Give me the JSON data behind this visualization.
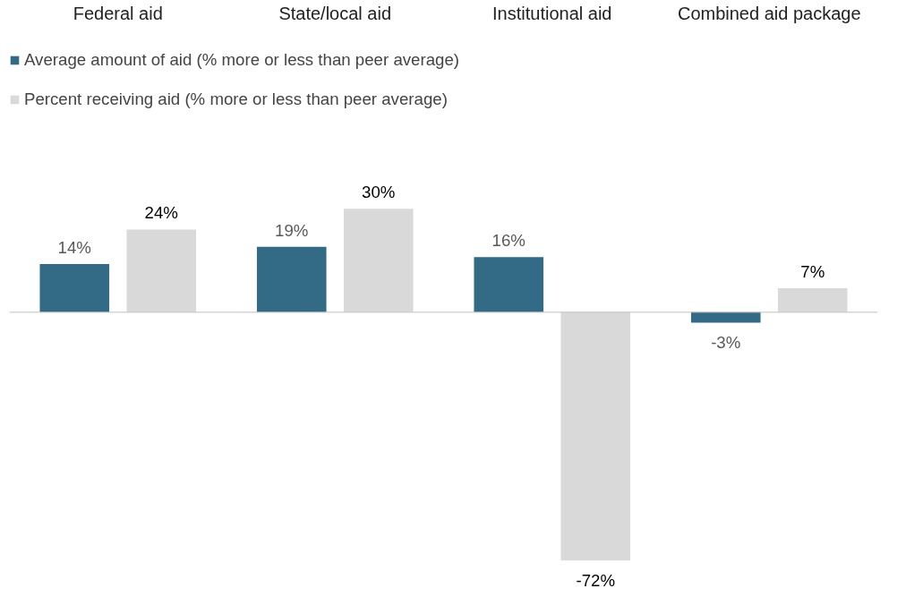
{
  "chart_data": {
    "type": "bar",
    "categories": [
      "Federal aid",
      "State/local aid",
      "Institutional aid",
      "Combined aid package"
    ],
    "series": [
      {
        "name": "Average amount of aid (% more or less than peer average)",
        "color": "#336b87",
        "values": [
          14,
          19,
          16,
          -3
        ],
        "value_labels": [
          "14%",
          "19%",
          "16%",
          "-3%"
        ]
      },
      {
        "name": "Percent receiving aid (% more or less than peer average)",
        "color": "#d9d9d9",
        "values": [
          24,
          30,
          -72,
          7
        ],
        "value_labels": [
          "24%",
          "30%",
          "-72%",
          "7%"
        ]
      }
    ],
    "legend": "top left"
  }
}
